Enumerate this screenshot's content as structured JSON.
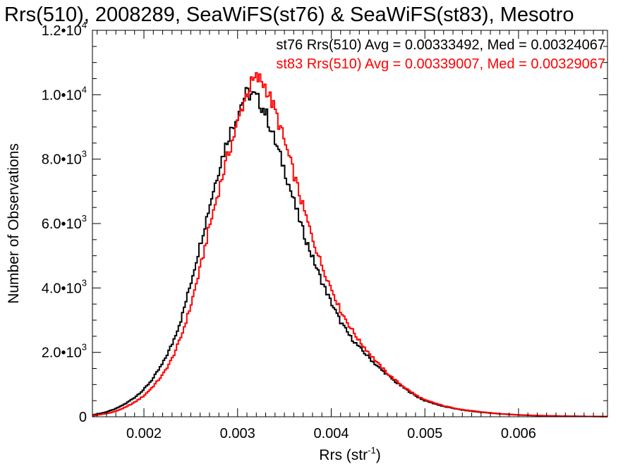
{
  "chart_data": {
    "type": "line",
    "title": "Rrs(510), 2008289, SeaWiFS(st76) & SeaWiFS(st83), Mesotro",
    "xlabel_base": "Rrs (str",
    "xlabel_sup": "-1",
    "xlabel_tail": ")",
    "ylabel": "Number of Observations",
    "xlim": [
      0.00145,
      0.00695
    ],
    "ylim": [
      0,
      12000
    ],
    "x_ticks": [
      {
        "value": 0.002,
        "label": "0.002"
      },
      {
        "value": 0.003,
        "label": "0.003"
      },
      {
        "value": 0.004,
        "label": "0.004"
      },
      {
        "value": 0.005,
        "label": "0.005"
      },
      {
        "value": 0.006,
        "label": "0.006"
      }
    ],
    "y_ticks": [
      {
        "value": 0,
        "mant": "0",
        "exp": ""
      },
      {
        "value": 2000,
        "mant": "2.0•10",
        "exp": "3"
      },
      {
        "value": 4000,
        "mant": "4.0•10",
        "exp": "3"
      },
      {
        "value": 6000,
        "mant": "6.0•10",
        "exp": "3"
      },
      {
        "value": 8000,
        "mant": "8.0•10",
        "exp": "3"
      },
      {
        "value": 10000,
        "mant": "1.0•10",
        "exp": "4"
      },
      {
        "value": 12000,
        "mant": "1.2•10",
        "exp": "4"
      }
    ],
    "legend_position": "top-right",
    "series": [
      {
        "name": "st76 Rrs(510) Avg = 0.00333492, Med = 0.00324067",
        "color": "#000000",
        "x": [
          0.00145,
          0.0016,
          0.0017,
          0.0018,
          0.0019,
          0.002,
          0.0021,
          0.0022,
          0.0023,
          0.0024,
          0.0025,
          0.0026,
          0.0027,
          0.0028,
          0.0029,
          0.003,
          0.00305,
          0.0031,
          0.00315,
          0.0032,
          0.00325,
          0.0033,
          0.0034,
          0.0035,
          0.0036,
          0.0037,
          0.0038,
          0.0039,
          0.004,
          0.0041,
          0.0042,
          0.0043,
          0.0044,
          0.0045,
          0.0046,
          0.0047,
          0.0048,
          0.0049,
          0.005,
          0.0052,
          0.0054,
          0.0056,
          0.0058,
          0.006,
          0.0062,
          0.0064,
          0.0066,
          0.0068,
          0.00695
        ],
        "y": [
          50,
          150,
          250,
          400,
          600,
          850,
          1200,
          1650,
          2250,
          3050,
          4150,
          5350,
          6550,
          7700,
          8700,
          9400,
          9800,
          10050,
          10000,
          9900,
          9700,
          9450,
          8550,
          7700,
          6700,
          5750,
          4950,
          4200,
          3550,
          2950,
          2500,
          2150,
          1850,
          1550,
          1300,
          1050,
          850,
          650,
          500,
          320,
          210,
          140,
          90,
          55,
          35,
          25,
          15,
          10,
          5
        ]
      },
      {
        "name": "st83 Rrs(510) Avg = 0.00339007, Med = 0.00329067",
        "color": "#ff0000",
        "x": [
          0.00145,
          0.0016,
          0.0017,
          0.0018,
          0.0019,
          0.002,
          0.0021,
          0.0022,
          0.0023,
          0.0024,
          0.0025,
          0.0026,
          0.0027,
          0.0028,
          0.0029,
          0.003,
          0.00305,
          0.0031,
          0.00315,
          0.0032,
          0.00325,
          0.0033,
          0.0034,
          0.0035,
          0.0036,
          0.0037,
          0.0038,
          0.0039,
          0.004,
          0.0041,
          0.0042,
          0.0043,
          0.0044,
          0.0045,
          0.0046,
          0.0047,
          0.0048,
          0.0049,
          0.005,
          0.0052,
          0.0054,
          0.0056,
          0.0058,
          0.006,
          0.0062,
          0.0064,
          0.0066,
          0.0068,
          0.00695
        ],
        "y": [
          30,
          100,
          170,
          290,
          450,
          650,
          950,
          1300,
          1800,
          2500,
          3450,
          4600,
          5900,
          7050,
          8150,
          9100,
          9650,
          10050,
          10350,
          10500,
          10450,
          10250,
          9500,
          8550,
          7550,
          6500,
          5550,
          4700,
          4000,
          3300,
          2800,
          2350,
          2000,
          1650,
          1350,
          1100,
          880,
          680,
          520,
          340,
          220,
          150,
          95,
          60,
          40,
          25,
          15,
          10,
          5
        ]
      }
    ]
  }
}
